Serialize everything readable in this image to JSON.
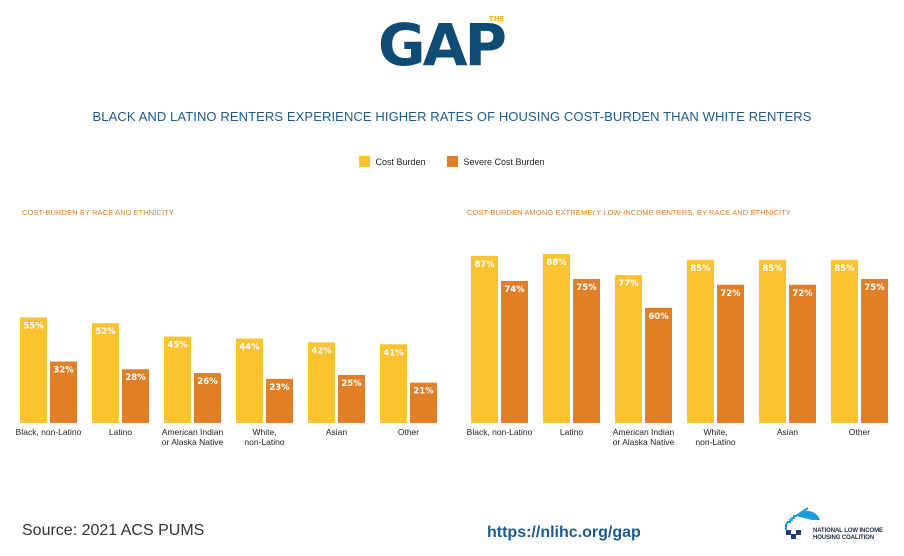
{
  "header": {
    "logo_small": "THE",
    "logo_main": "GAP",
    "headline": "BLACK AND LATINO RENTERS EXPERIENCE HIGHER RATES OF HOUSING COST-BURDEN THAN WHITE RENTERS"
  },
  "legend": [
    {
      "label": "Cost Burden",
      "color": "#fcc22f"
    },
    {
      "label": "Severe Cost Burden",
      "color": "#e07f26"
    }
  ],
  "chart_data": [
    {
      "type": "bar",
      "title": "COST-BURDEN BY RACE AND ETHNICITY",
      "categories": [
        "Black, non-Latino",
        "Latino",
        "American Indian|or Alaska Native",
        "White,|non-Latino",
        "Asian",
        "Other"
      ],
      "series": [
        {
          "name": "Cost Burden",
          "color": "#fcc22f",
          "values": [
            55,
            52,
            45,
            44,
            42,
            41
          ]
        },
        {
          "name": "Severe Cost Burden",
          "color": "#e07f26",
          "values": [
            32,
            28,
            26,
            23,
            25,
            21
          ]
        }
      ],
      "value_suffix": "%",
      "ylim": [
        0,
        100
      ],
      "grid": false,
      "legend": "top-center"
    },
    {
      "type": "bar",
      "title": "COST-BURDEN AMONG EXTREMELY LOW-INCOME RENTERS, BY RACE AND ETHNICITY",
      "categories": [
        "Black, non-Latino",
        "Latino",
        "American Indian|or Alaska Native",
        "White,|non-Latino",
        "Asian",
        "Other"
      ],
      "series": [
        {
          "name": "Cost Burden",
          "color": "#fcc22f",
          "values": [
            87,
            88,
            77,
            85,
            85,
            85
          ]
        },
        {
          "name": "Severe Cost Burden",
          "color": "#e07f26",
          "values": [
            74,
            75,
            60,
            72,
            72,
            75
          ]
        }
      ],
      "value_suffix": "%",
      "ylim": [
        0,
        100
      ],
      "grid": false,
      "legend": "top-center"
    }
  ],
  "footer": {
    "source": "Source: 2021 ACS PUMS",
    "url": "https://nlihc.org/gap",
    "org_line1": "NATIONAL LOW INCOME",
    "org_line2": "HOUSING COALITION"
  }
}
